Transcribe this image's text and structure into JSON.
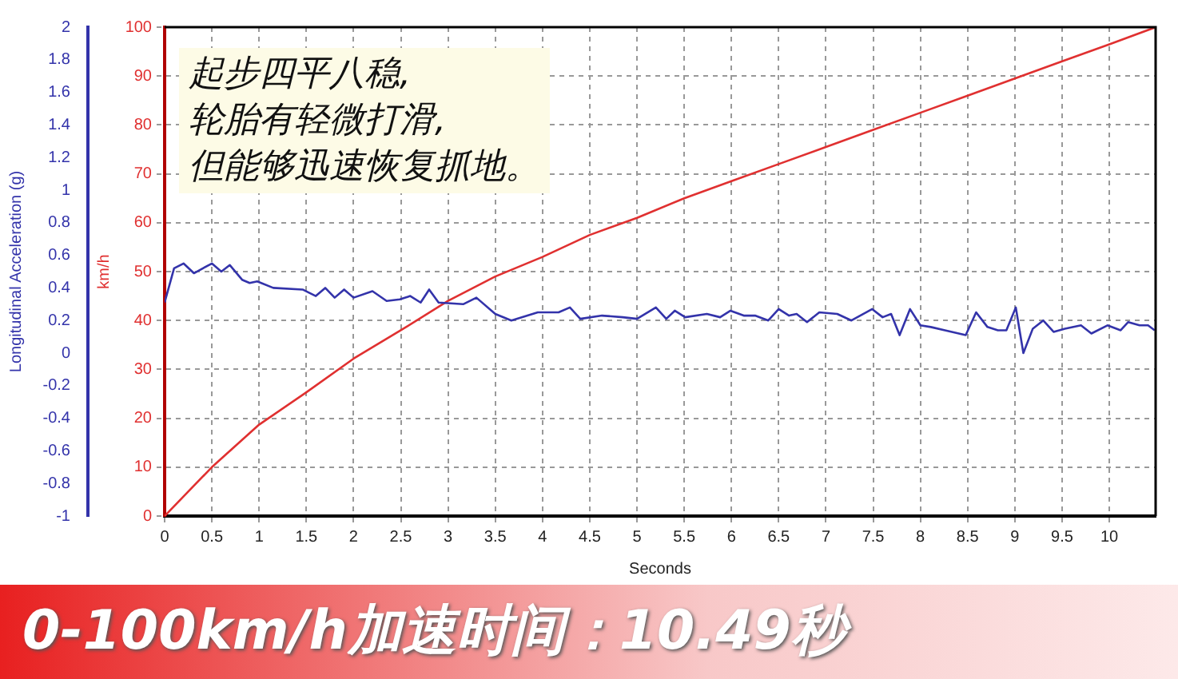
{
  "chart_data": {
    "type": "line",
    "xlabel": "Seconds",
    "ylabel": "Longitudinal Acceleration (g)",
    "y2label": "km/h",
    "annotations": [
      "起步四平八稳,\n轮胎有轻微打滑,\n但能够迅速恢复抓地。",
      "0-100km/h加速时间：10.49秒"
    ],
    "xlim": [
      0,
      10.49
    ],
    "xticks": [
      0,
      0.5,
      1,
      1.5,
      2,
      2.5,
      3,
      3.5,
      4,
      4.5,
      5,
      5.5,
      6,
      6.5,
      7,
      7.5,
      8,
      8.5,
      9,
      9.5,
      10
    ],
    "ylim": [
      -1,
      2
    ],
    "yticks": [
      -1,
      -0.8,
      -0.6,
      -0.4,
      -0.2,
      0,
      0.2,
      0.4,
      0.6,
      0.8,
      1,
      1.2,
      1.4,
      1.6,
      1.8,
      2
    ],
    "y2lim": [
      0,
      100
    ],
    "y2ticks": [
      0,
      10,
      20,
      30,
      40,
      50,
      60,
      70,
      80,
      90,
      100
    ],
    "grid": true,
    "legend": false,
    "marker": "none",
    "line_style": "solid",
    "series": [
      {
        "color": "#3333aa",
        "axis": "y",
        "x": [
          0,
          0.1,
          0.2,
          0.31,
          0.5,
          0.6,
          0.69,
          0.82,
          0.9,
          0.98,
          1.15,
          1.46,
          1.6,
          1.7,
          1.8,
          1.9,
          2.0,
          2.2,
          2.35,
          2.49,
          2.6,
          2.71,
          2.8,
          2.9,
          3.16,
          3.3,
          3.5,
          3.67,
          3.95,
          4.17,
          4.29,
          4.4,
          4.63,
          4.85,
          5.0,
          5.2,
          5.31,
          5.4,
          5.51,
          5.74,
          5.88,
          5.99,
          6.13,
          6.25,
          6.39,
          6.5,
          6.61,
          6.69,
          6.8,
          6.93,
          7.12,
          7.27,
          7.49,
          7.6,
          7.69,
          7.78,
          7.89,
          8.0,
          8.11,
          8.26,
          8.48,
          8.59,
          8.71,
          8.82,
          8.91,
          9.01,
          9.09,
          9.19,
          9.3,
          9.41,
          9.53,
          9.7,
          9.81,
          9.98,
          10.12,
          10.2,
          10.32,
          10.41,
          10.48
        ],
        "values": [
          0.31,
          0.52,
          0.55,
          0.49,
          0.55,
          0.5,
          0.54,
          0.45,
          0.43,
          0.44,
          0.4,
          0.39,
          0.35,
          0.4,
          0.34,
          0.39,
          0.34,
          0.38,
          0.32,
          0.33,
          0.35,
          0.31,
          0.39,
          0.31,
          0.3,
          0.34,
          0.24,
          0.2,
          0.25,
          0.25,
          0.28,
          0.21,
          0.23,
          0.22,
          0.21,
          0.28,
          0.21,
          0.26,
          0.22,
          0.24,
          0.22,
          0.26,
          0.23,
          0.23,
          0.2,
          0.27,
          0.23,
          0.24,
          0.19,
          0.25,
          0.24,
          0.2,
          0.27,
          0.22,
          0.24,
          0.11,
          0.27,
          0.17,
          0.16,
          0.14,
          0.11,
          0.25,
          0.16,
          0.14,
          0.14,
          0.28,
          0.0,
          0.15,
          0.2,
          0.13,
          0.15,
          0.17,
          0.12,
          0.17,
          0.14,
          0.19,
          0.17,
          0.17,
          0.14
        ]
      },
      {
        "color": "#e03030",
        "axis": "y2",
        "x": [
          0,
          0.05,
          0.5,
          1,
          1.5,
          2,
          2.5,
          3,
          3.5,
          4,
          4.5,
          5,
          5.5,
          6,
          6.5,
          7,
          7.5,
          8,
          8.5,
          9,
          9.5,
          10,
          10.49
        ],
        "values": [
          0,
          1,
          10,
          18.7,
          25.3,
          32.2,
          38,
          44,
          49,
          53,
          57.5,
          61,
          65,
          68.5,
          72,
          75.5,
          79,
          82.5,
          86,
          89.5,
          93,
          96.5,
          100
        ]
      }
    ]
  }
}
